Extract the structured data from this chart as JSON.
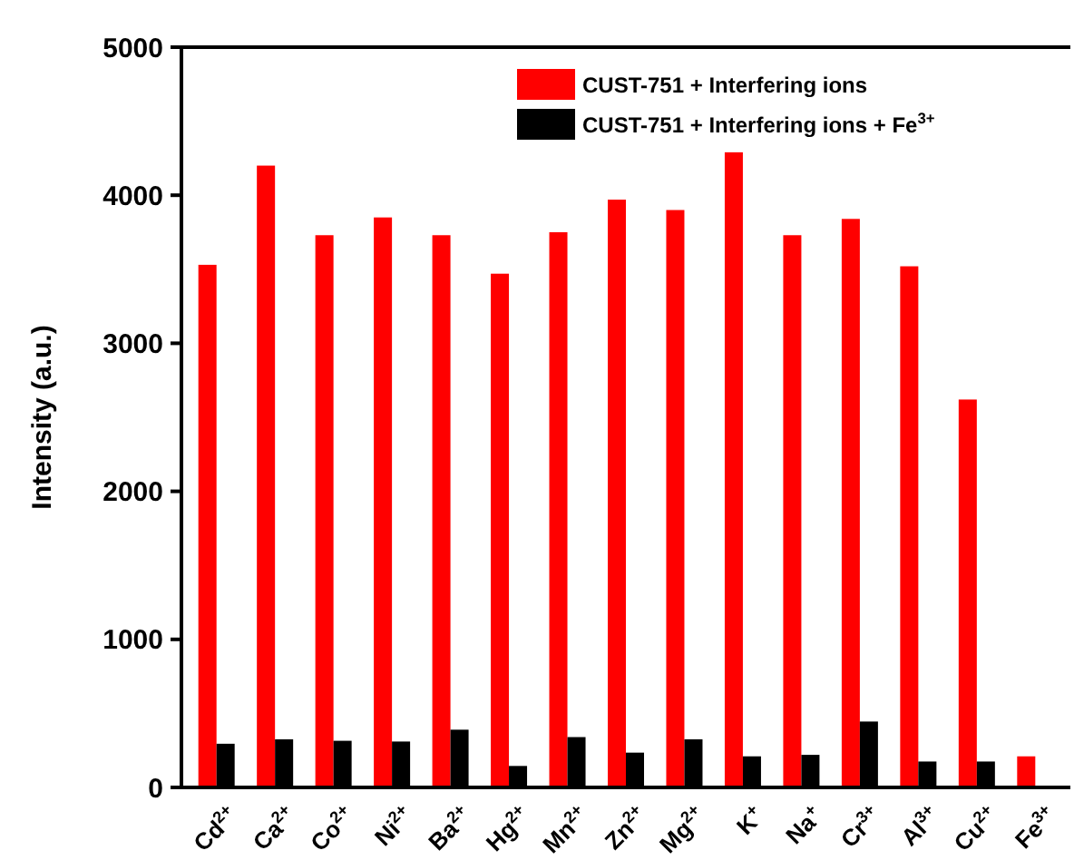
{
  "chart_data": {
    "type": "bar",
    "ylabel": "Intensity (a.u.)",
    "categories": [
      "Cd$^{2+}$",
      "Ca$^{2+}$",
      "Co$^{2+}$",
      "Ni$^{2+}$",
      "Ba$^{2+}$",
      "Hg$^{2+}$",
      "Mn$^{2+}$",
      "Zn$^{2+}$",
      "Mg$^{2+}$",
      "K$^{+}$",
      "Na$^{+}$",
      "Cr$^{3+}$",
      "Al$^{3+}$",
      "Cu$^{2+}$",
      "Fe$^{3+}$"
    ],
    "series": [
      {
        "name": "CUST-751 + Interfering ions",
        "color": "#ff0000",
        "values": [
          3530,
          4200,
          3730,
          3850,
          3730,
          3470,
          3750,
          3970,
          3900,
          4290,
          3730,
          3840,
          3520,
          2620,
          210
        ]
      },
      {
        "name": "CUST-751 + Interfering ions + Fe$^{3+}$",
        "color": "#000000",
        "values": [
          295,
          325,
          315,
          310,
          390,
          145,
          340,
          235,
          325,
          210,
          220,
          445,
          175,
          175,
          null
        ]
      }
    ],
    "ylim": [
      0,
      5000
    ],
    "yticks": [
      0,
      1000,
      2000,
      3000,
      4000,
      5000
    ],
    "grid": false,
    "legend": "top right"
  }
}
